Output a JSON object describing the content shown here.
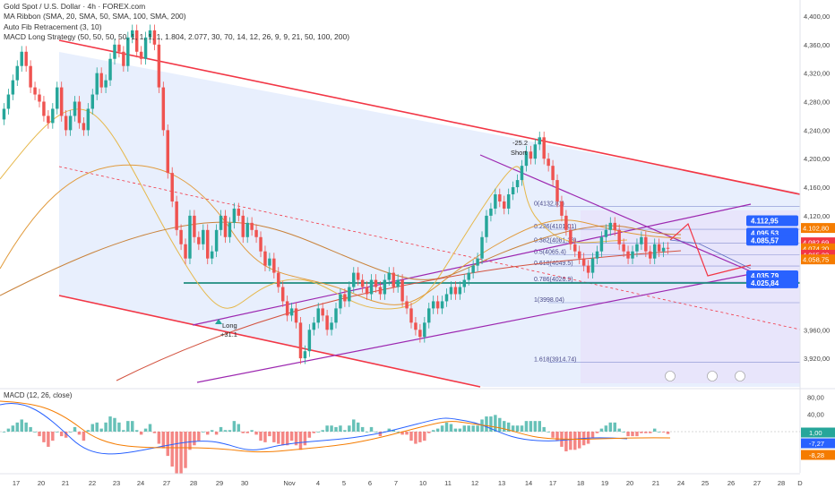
{
  "legend": {
    "symbol_line": "Gold Spot / U.S. Dollar · 4h · FOREX.com",
    "indicator_1": "MA Ribbon (SMA, 20, SMA, 50, SMA, 100, SMA, 200)",
    "indicator_2": "Auto Fib Retracement (3, 10)",
    "indicator_3": "MACD Long Strategy (50, 50, 50, 50, 1, 1, 1, 1, 1.804, 2.077, 30, 70, 14, 12, 26, 9, 9, 21, 50, 100, 200)"
  },
  "macd_label": "MACD (12, 26, close)",
  "colors": {
    "up": "#26a69a",
    "down": "#ef5350",
    "channel": "#f23645",
    "purple": "#9c27b0",
    "support": "#1e8c7e",
    "blue_fill": "#d6e2fb",
    "fib_fill": "#e7defa",
    "badge_blue": "#2962ff",
    "badge_orange": "#f57c00",
    "badge_red": "#f23645"
  },
  "chart_data": {
    "type": "candlestick",
    "y_axis_ticks": [
      "4,400,00",
      "4,360,00",
      "4,320,00",
      "4,280,00",
      "4,240,00",
      "4,200,00",
      "4,160,00",
      "4,120,00",
      "3,960,00",
      "3,920,00"
    ],
    "ylim": [
      3885,
      4410
    ],
    "x_axis_ticks": [
      "17",
      "20",
      "21",
      "22",
      "23",
      "24",
      "27",
      "28",
      "29",
      "30",
      "Nov",
      "4",
      "5",
      "6",
      "7",
      "10",
      "11",
      "12",
      "13",
      "14",
      "17",
      "18",
      "19",
      "20",
      "21",
      "24",
      "25",
      "26",
      "27",
      "28",
      "D"
    ],
    "price_badges": [
      {
        "text": "4.112,95",
        "value": 4112.95,
        "color": "blue"
      },
      {
        "text": "4.102,80",
        "value": 4102.8,
        "color": "orange"
      },
      {
        "text": "4.095,53",
        "value": 4095.53,
        "color": "blue"
      },
      {
        "text": "4.082,69",
        "value": 4082.69,
        "color": "red"
      },
      {
        "text": "4.085,57",
        "value": 4085.57,
        "color": "blue"
      },
      {
        "text": "4.074,20",
        "value": 4074.2,
        "color": "orange"
      },
      {
        "text": "4.065,23",
        "value": 4065.23,
        "color": "red"
      },
      {
        "text": "4.058,75",
        "value": 4058.75,
        "color": "orange"
      },
      {
        "text": "4.035,79",
        "value": 4035.79,
        "color": "blue"
      },
      {
        "text": "4.025,84",
        "value": 4025.84,
        "color": "blue"
      }
    ],
    "fib_levels": [
      {
        "label": "0(4132.81)",
        "value": 4132.81
      },
      {
        "label": "0.236(4101.01)",
        "value": 4101.01
      },
      {
        "label": "0.382(4081.33)",
        "value": 4081.33
      },
      {
        "label": "0.5(4065.4)",
        "value": 4065.4
      },
      {
        "label": "0.618(4049.5)",
        "value": 4049.5
      },
      {
        "label": "0.786(4026.9)",
        "value": 4026.9
      },
      {
        "label": "1(3998.04)",
        "value": 3998.04
      },
      {
        "label": "1.618(3914.74)",
        "value": 3914.74
      }
    ],
    "annotations": [
      {
        "text": "-25.2",
        "note": "short signal value"
      },
      {
        "text": "Short",
        "note": "signal label"
      },
      {
        "text": "Long",
        "note": "signal label"
      },
      {
        "text": "+31.1",
        "note": "long signal value"
      }
    ],
    "candles_close": [
      4270,
      4290,
      4310,
      4330,
      4350,
      4330,
      4300,
      4290,
      4280,
      4260,
      4250,
      4270,
      4300,
      4260,
      4240,
      4260,
      4280,
      4250,
      4240,
      4270,
      4290,
      4320,
      4300,
      4310,
      4340,
      4360,
      4350,
      4330,
      4370,
      4380,
      4350,
      4340,
      4370,
      4380,
      4360,
      4300,
      4240,
      4180,
      4140,
      4100,
      4080,
      4060,
      4120,
      4090,
      4080,
      4100,
      4060,
      4070,
      4100,
      4120,
      4090,
      4110,
      4130,
      4120,
      4090,
      4110,
      4100,
      4090,
      4070,
      4050,
      4060,
      4040,
      4020,
      4000,
      3980,
      3990,
      3970,
      3920,
      3930,
      3960,
      3970,
      3990,
      3980,
      3960,
      3970,
      3990,
      4010,
      4000,
      4020,
      4040,
      4030,
      4020,
      4010,
      4030,
      4020,
      4010,
      4030,
      4040,
      4020,
      4030,
      4000,
      3990,
      3970,
      3960,
      3950,
      3970,
      3990,
      4000,
      3990,
      4000,
      4010,
      4020,
      4010,
      4020,
      4030,
      4040,
      4050,
      4060,
      4090,
      4120,
      4130,
      4150,
      4140,
      4130,
      4150,
      4160,
      4170,
      4190,
      4210,
      4200,
      4220,
      4230,
      4200,
      4190,
      4170,
      4140,
      4120,
      4100,
      4080,
      4070,
      4060,
      4050,
      4040,
      4060,
      4070,
      4090,
      4100,
      4110,
      4100,
      4080,
      4070,
      4060,
      4070,
      4080,
      4090,
      4070,
      4060,
      4080,
      4070,
      4075,
      4074.2
    ],
    "macd": {
      "y_axis_ticks": [
        "80,00",
        "40,00"
      ],
      "ylim": [
        -95,
        95
      ],
      "badges": [
        {
          "text": "1,00",
          "value": 1.0,
          "color": "teal"
        },
        {
          "text": "-7,27",
          "value": -7.27,
          "color": "blue"
        },
        {
          "text": "-8,28",
          "value": -8.28,
          "color": "orange"
        }
      ]
    }
  }
}
